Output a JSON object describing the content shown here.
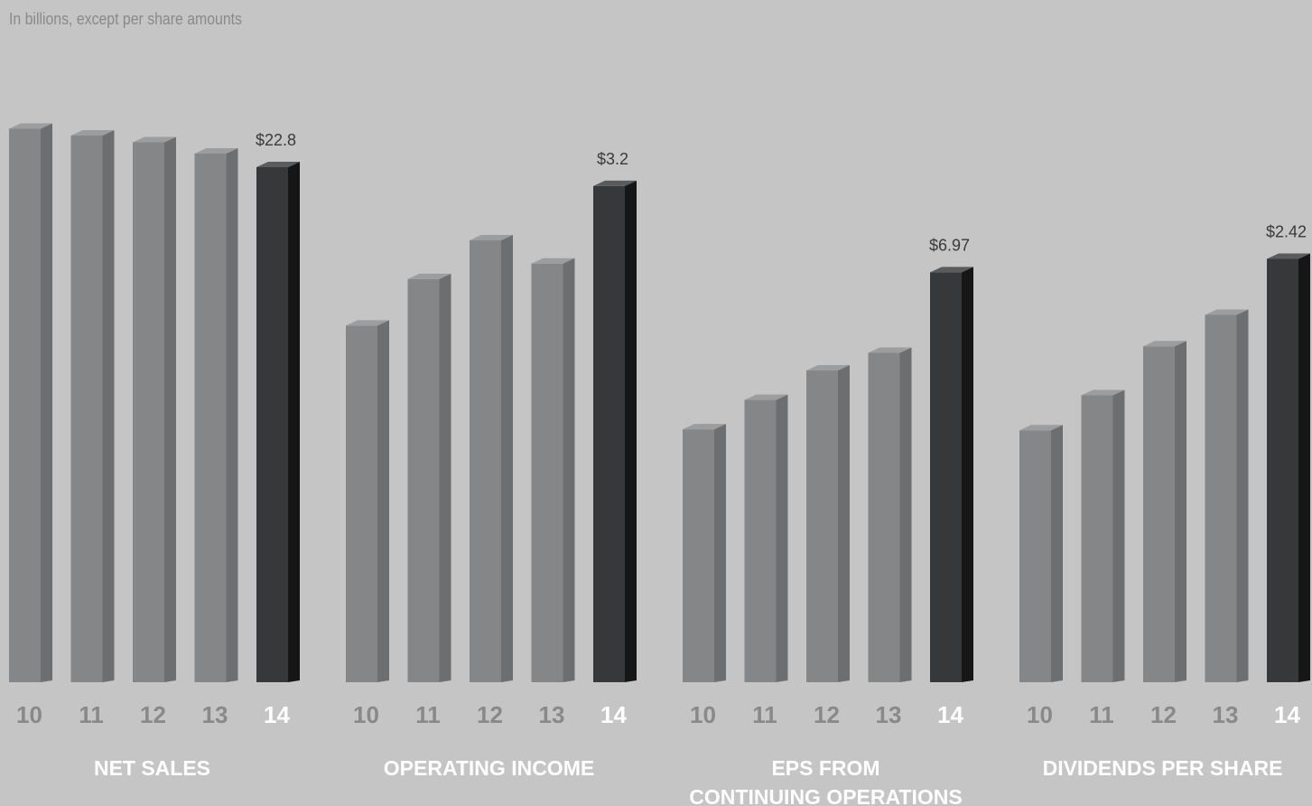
{
  "note": "In billions, except per share amounts",
  "colors": {
    "background": "#c6c5c6",
    "bar_front": "#858687",
    "bar_side": "#6d6e6f",
    "bar_top": "#9c9d9e",
    "highlight_front": "#37383a",
    "highlight_side": "#161617",
    "highlight_top": "#5a5b5d",
    "year_label": "#8a898a",
    "title": "#ffffff"
  },
  "chart_data": [
    {
      "type": "bar",
      "title": [
        "NET SALES"
      ],
      "categories": [
        "10",
        "11",
        "12",
        "13",
        "14"
      ],
      "values": [
        24.5,
        24.2,
        23.9,
        23.4,
        22.8
      ],
      "ylim": [
        0,
        30.2
      ],
      "highlight_index": 4,
      "value_labels": [
        "",
        "",
        "",
        "",
        "$22.8"
      ]
    },
    {
      "type": "bar",
      "title": [
        "OPERATING INCOME"
      ],
      "categories": [
        "10",
        "11",
        "12",
        "13",
        "14"
      ],
      "values": [
        2.3,
        2.6,
        2.85,
        2.7,
        3.2
      ],
      "ylim": [
        0,
        4.4
      ],
      "highlight_index": 4,
      "value_labels": [
        "",
        "",
        "",
        "",
        "$3.2"
      ]
    },
    {
      "type": "bar",
      "title": [
        "EPS FROM",
        "CONTINUING OPERATIONS"
      ],
      "categories": [
        "10",
        "11",
        "12",
        "13",
        "14"
      ],
      "values": [
        4.3,
        4.8,
        5.3,
        5.6,
        6.97
      ],
      "ylim": [
        0,
        11.6
      ],
      "highlight_index": 4,
      "value_labels": [
        "",
        "",
        "",
        "",
        "$6.97"
      ]
    },
    {
      "type": "bar",
      "title": [
        "DIVIDENDS PER SHARE"
      ],
      "categories": [
        "10",
        "11",
        "12",
        "13",
        "14"
      ],
      "values": [
        1.44,
        1.64,
        1.92,
        2.1,
        2.42
      ],
      "ylim": [
        0,
        3.9
      ],
      "highlight_index": 4,
      "value_labels": [
        "",
        "",
        "",
        "",
        "$2.42"
      ]
    }
  ]
}
